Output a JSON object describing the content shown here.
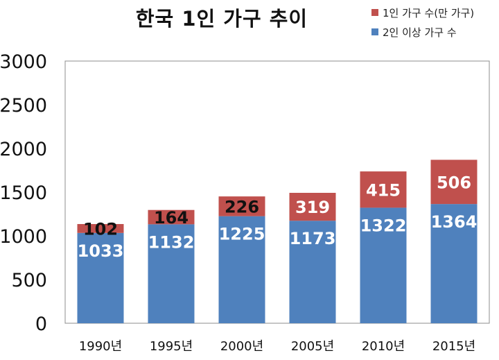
{
  "chart_data": {
    "type": "bar",
    "stacked": true,
    "title": "한국 1인 가구 추이",
    "categories": [
      "1990년",
      "1995년",
      "2000년",
      "2005년",
      "2010년",
      "2015년"
    ],
    "series": [
      {
        "name": "2인 이상 가구 수",
        "values": [
          1033,
          1132,
          1225,
          1173,
          1322,
          1364
        ],
        "color": "#4f81bd"
      },
      {
        "name": "1인 가구 수(만 가구)",
        "values": [
          102,
          164,
          226,
          319,
          415,
          506
        ],
        "color": "#c0504d"
      }
    ],
    "ylim": [
      0,
      3000
    ],
    "yticks": [
      0,
      500,
      1000,
      1500,
      2000,
      2500,
      3000
    ],
    "legend_position": "top-right",
    "grid": false
  }
}
